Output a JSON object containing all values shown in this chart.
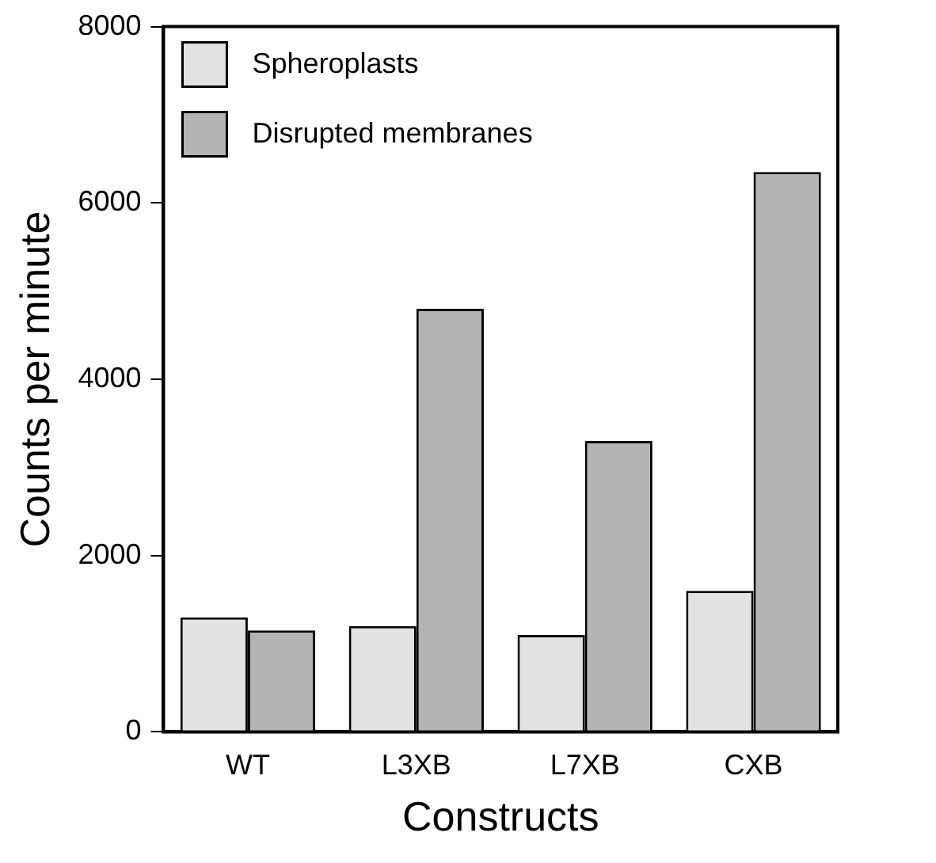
{
  "chart_data": {
    "type": "bar",
    "xlabel": "Constructs",
    "ylabel": "Counts per minute",
    "categories": [
      "WT",
      "L3XB",
      "L7XB",
      "CXB"
    ],
    "series": [
      {
        "name": "Spheroplasts",
        "color": "#e2e2e2",
        "values": [
          1300,
          1200,
          1100,
          1600
        ]
      },
      {
        "name": "Disrupted membranes",
        "color": "#b4b4b4",
        "values": [
          1150,
          4800,
          3300,
          6350
        ]
      }
    ],
    "ylim": [
      0,
      8000
    ],
    "yticks": [
      0,
      2000,
      4000,
      6000,
      8000
    ],
    "grid": false,
    "legend": "top left"
  }
}
